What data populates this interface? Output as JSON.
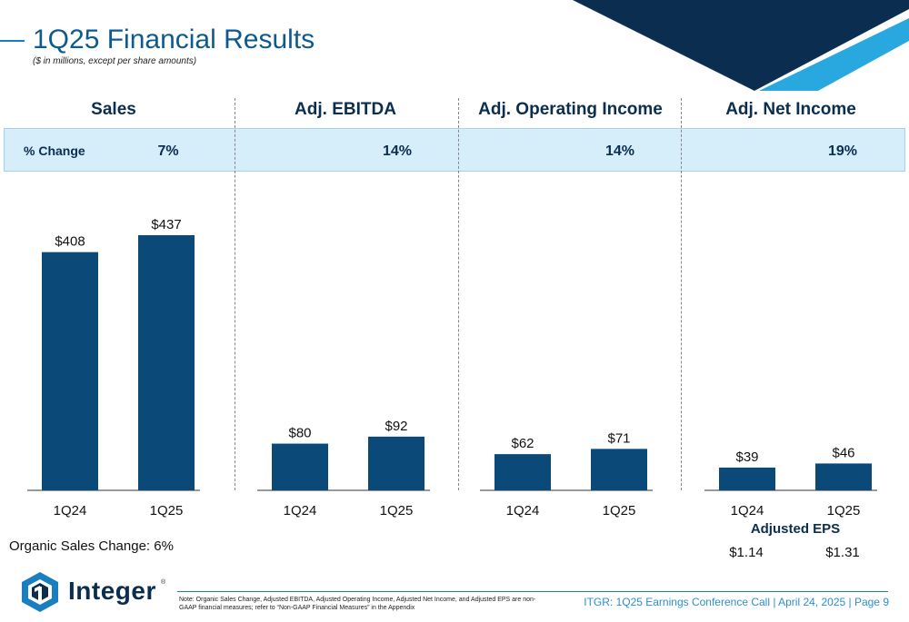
{
  "header": {
    "title": "1Q25 Financial Results",
    "subtitle": "($ in millions, except per share amounts)"
  },
  "band": {
    "label": "% Change"
  },
  "chart_data": [
    {
      "type": "bar",
      "title": "Sales",
      "categories": [
        "1Q24",
        "1Q25"
      ],
      "values": [
        408,
        437
      ],
      "value_labels": [
        "$408",
        "$437"
      ],
      "pct_change": "7%"
    },
    {
      "type": "bar",
      "title": "Adj. EBITDA",
      "categories": [
        "1Q24",
        "1Q25"
      ],
      "values": [
        80,
        92
      ],
      "value_labels": [
        "$80",
        "$92"
      ],
      "pct_change": "14%"
    },
    {
      "type": "bar",
      "title": "Adj. Operating Income",
      "categories": [
        "1Q24",
        "1Q25"
      ],
      "values": [
        62,
        71
      ],
      "value_labels": [
        "$62",
        "$71"
      ],
      "pct_change": "14%"
    },
    {
      "type": "bar",
      "title": "Adj. Net Income",
      "categories": [
        "1Q24",
        "1Q25"
      ],
      "values": [
        39,
        46
      ],
      "value_labels": [
        "$39",
        "$46"
      ],
      "pct_change": "19%"
    }
  ],
  "organic_sales": "Organic Sales Change: 6%",
  "adjusted_eps": {
    "label": "Adjusted EPS",
    "values": [
      "$1.14",
      "$1.31"
    ]
  },
  "footer": {
    "logo": "Integer",
    "logo_mark": "®",
    "note": "Note: Organic Sales Change, Adjusted EBITDA, Adjusted Operating Income, Adjusted Net Income, and Adjusted EPS are non-GAAP financial measures; refer to “Non-GAAP Financial Measures” in the Appendix",
    "right_text": "ITGR: 1Q25 Earnings Conference Call  |  April 24, 2025  |  Page 9"
  },
  "colors": {
    "bar": "#0b4a78",
    "accent": "#1a7fc1",
    "dark_navy": "#0b2d4f",
    "light_blue": "#29a8e0"
  }
}
